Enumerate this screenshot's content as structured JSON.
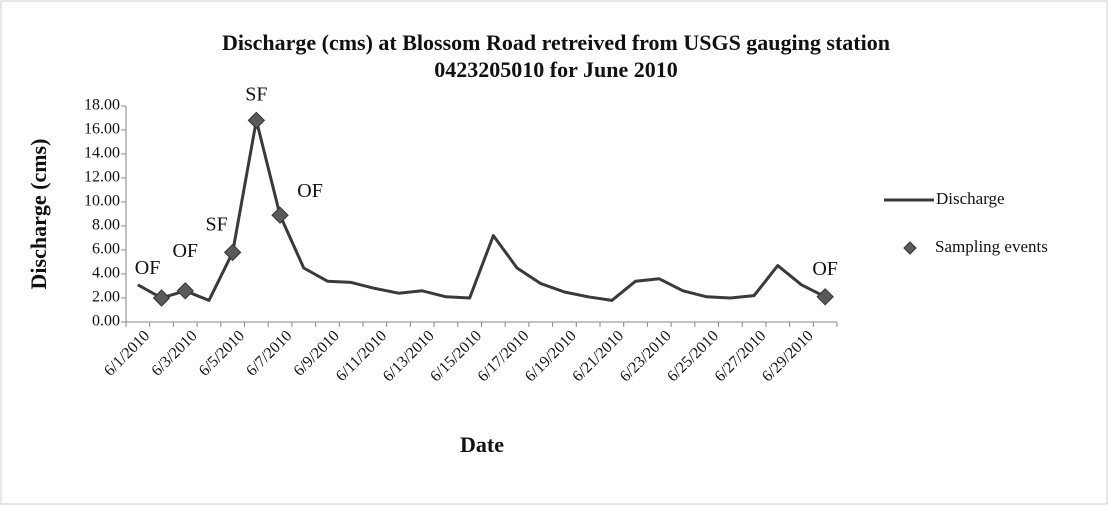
{
  "chart_data": {
    "type": "line",
    "title": [
      "Discharge (cms) at Blossom Road retreived from USGS gauging station",
      "0423205010 for June 2010"
    ],
    "x_label": "Date",
    "y_label": "Discharge (cms)",
    "categories": [
      "6/1/2010",
      null,
      "6/3/2010",
      null,
      "6/5/2010",
      null,
      "6/7/2010",
      null,
      "6/9/2010",
      null,
      "6/11/2010",
      null,
      "6/13/2010",
      null,
      "6/15/2010",
      null,
      "6/17/2010",
      null,
      "6/19/2010",
      null,
      "6/21/2010",
      null,
      "6/23/2010",
      null,
      "6/25/2010",
      null,
      "6/27/2010",
      null,
      "6/29/2010",
      null
    ],
    "series": [
      {
        "name": "Discharge",
        "color": "#3a3a3a",
        "values": [
          3.1,
          2.0,
          2.6,
          1.8,
          5.8,
          16.8,
          8.9,
          4.5,
          3.4,
          3.3,
          2.8,
          2.4,
          2.6,
          2.1,
          2.0,
          7.2,
          4.5,
          3.2,
          2.5,
          2.1,
          1.8,
          3.4,
          3.6,
          2.6,
          2.1,
          2.0,
          2.2,
          4.7,
          3.1,
          2.1
        ]
      },
      {
        "name": "Sampling events",
        "color": "#5a5a5a",
        "marker": "diamond",
        "values": [
          null,
          2.0,
          2.6,
          null,
          5.8,
          16.8,
          8.9,
          null,
          null,
          null,
          null,
          null,
          null,
          null,
          null,
          null,
          null,
          null,
          null,
          null,
          null,
          null,
          null,
          null,
          null,
          null,
          null,
          null,
          null,
          2.1
        ],
        "point_labels": [
          null,
          "OF",
          "OF",
          null,
          "SF",
          "SF",
          "OF",
          null,
          null,
          null,
          null,
          null,
          null,
          null,
          null,
          null,
          null,
          null,
          null,
          null,
          null,
          null,
          null,
          null,
          null,
          null,
          null,
          null,
          null,
          "OF"
        ]
      }
    ],
    "ylim": [
      0,
      18
    ],
    "yticks": [
      {
        "value": 0,
        "label": "0.00"
      },
      {
        "value": 2,
        "label": "2.00"
      },
      {
        "value": 4,
        "label": "4.00"
      },
      {
        "value": 6,
        "label": "6.00"
      },
      {
        "value": 8,
        "label": "8.00"
      },
      {
        "value": 10,
        "label": "10.00"
      },
      {
        "value": 12,
        "label": "12.00"
      },
      {
        "value": 14,
        "label": "14.00"
      },
      {
        "value": 16,
        "label": "16.00"
      },
      {
        "value": 18,
        "label": "18.00"
      }
    ],
    "legend": "right"
  }
}
